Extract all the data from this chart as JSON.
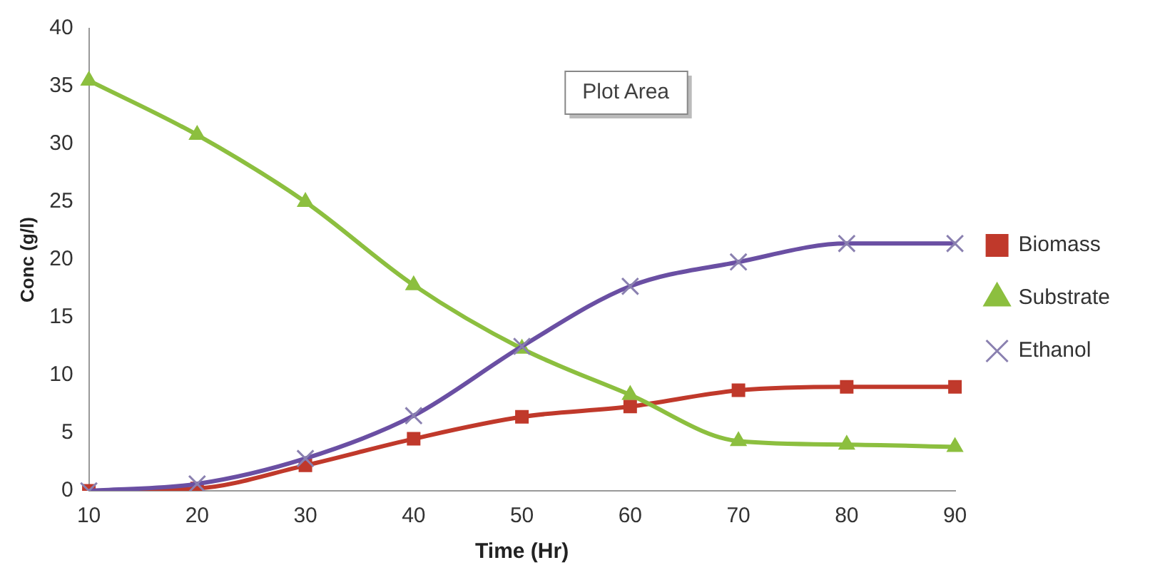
{
  "chart_data": {
    "type": "line",
    "xlabel": "Time (Hr)",
    "ylabel": "Conc (g/l)",
    "categories": [
      "10",
      "20",
      "30",
      "40",
      "50",
      "60",
      "70",
      "80",
      "90"
    ],
    "ylim": [
      0,
      40
    ],
    "yticks": [
      0,
      5,
      10,
      15,
      20,
      25,
      30,
      35,
      40
    ],
    "grid": false,
    "legend": "right",
    "annotations": [
      "Plot Area"
    ],
    "series": [
      {
        "name": "Biomass",
        "color": "#c0392b",
        "marker": "square",
        "values": [
          0,
          0.2,
          2.2,
          4.5,
          6.4,
          7.3,
          8.7,
          9.0,
          9.0
        ]
      },
      {
        "name": "Substrate",
        "color": "#8cbf3f",
        "marker": "triangle",
        "values": [
          35.5,
          30.8,
          25.0,
          17.8,
          12.3,
          8.3,
          4.3,
          4.0,
          3.8
        ]
      },
      {
        "name": "Ethanol",
        "color": "#6a4fa3",
        "marker": "cross",
        "values": [
          0,
          0.6,
          2.8,
          6.5,
          12.5,
          17.7,
          19.8,
          21.4,
          21.4
        ]
      }
    ]
  }
}
